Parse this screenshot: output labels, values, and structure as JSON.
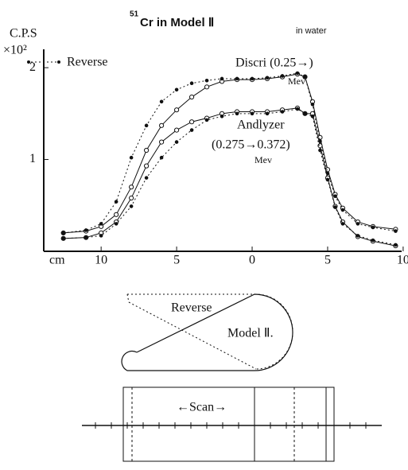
{
  "chart_data": {
    "type": "line",
    "title_prefix": "51",
    "title": "Cr in Model Ⅱ",
    "title_suffix": "in water",
    "ylabel": "C.P.S",
    "yunit": "×10²",
    "xlabel": "cm",
    "legend": "Reverse",
    "annotations": [
      "Discri (0.25→)",
      "Mev",
      "Andlyzer",
      "(0.275→0.372)",
      "Mev"
    ],
    "x": [
      -12.5,
      -11,
      -10,
      -9,
      -8,
      -7,
      -6,
      -5,
      -4,
      -3,
      -2,
      -1,
      0,
      1,
      2,
      3,
      3.5,
      4,
      4.5,
      5,
      5.5,
      6,
      7,
      8,
      9.5
    ],
    "series": [
      {
        "style": "solid",
        "color": "#111111",
        "values": [
          0.2,
          0.22,
          0.27,
          0.4,
          0.7,
          1.1,
          1.37,
          1.54,
          1.68,
          1.79,
          1.85,
          1.87,
          1.87,
          1.88,
          1.9,
          1.93,
          1.9,
          1.63,
          1.24,
          0.89,
          0.62,
          0.47,
          0.32,
          0.27,
          0.24
        ]
      },
      {
        "style": "dotted",
        "color": "#111111",
        "values": [
          0.2,
          0.23,
          0.3,
          0.54,
          1.02,
          1.37,
          1.63,
          1.76,
          1.83,
          1.86,
          1.88,
          1.88,
          1.88,
          1.89,
          1.91,
          1.94,
          1.9,
          1.6,
          1.2,
          0.85,
          0.6,
          0.45,
          0.3,
          0.26,
          0.22
        ]
      },
      {
        "style": "solid",
        "color": "#111111",
        "values": [
          0.14,
          0.15,
          0.2,
          0.32,
          0.58,
          0.93,
          1.19,
          1.32,
          1.41,
          1.45,
          1.5,
          1.52,
          1.52,
          1.52,
          1.54,
          1.56,
          1.5,
          1.5,
          1.15,
          0.8,
          0.49,
          0.32,
          0.16,
          0.11,
          0.06
        ]
      },
      {
        "style": "dotted",
        "color": "#111111",
        "values": [
          0.14,
          0.15,
          0.17,
          0.3,
          0.49,
          0.8,
          1.02,
          1.19,
          1.32,
          1.43,
          1.47,
          1.5,
          1.5,
          1.5,
          1.52,
          1.55,
          1.5,
          1.47,
          1.1,
          0.78,
          0.48,
          0.3,
          0.17,
          0.12,
          0.07
        ]
      }
    ],
    "xlim": [
      -13.8,
      9.9
    ],
    "xticks": [
      {
        "value": -10,
        "label": "10"
      },
      {
        "value": -5,
        "label": "5"
      },
      0,
      5,
      10
    ],
    "ylim": [
      0,
      2.2
    ],
    "yticks": [
      1,
      2
    ],
    "grid": false
  },
  "diagrams": {
    "model": {
      "label_reverse": "Reverse",
      "label_model": "Model Ⅱ."
    },
    "scan": {
      "label": "←Scan→"
    }
  }
}
